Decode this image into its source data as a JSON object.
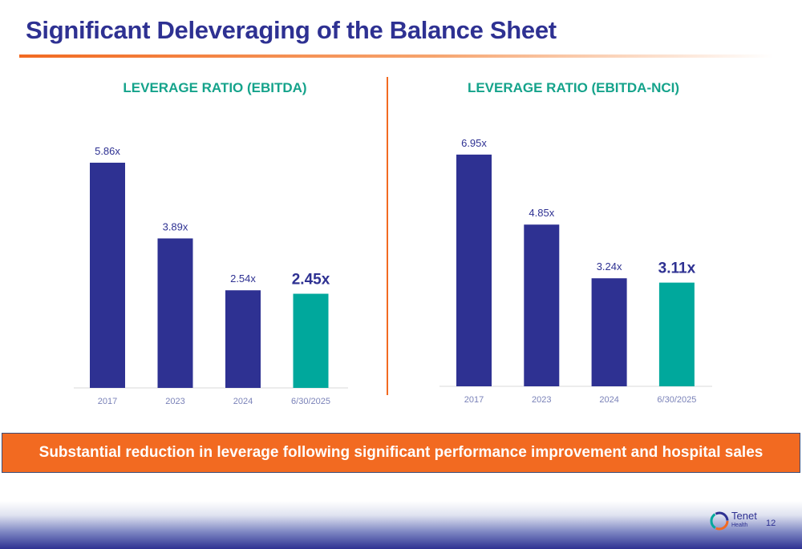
{
  "title": "Significant Deleveraging of the Balance Sheet",
  "banner": "Substantial reduction in leverage following significant performance improvement and hospital sales",
  "footer": {
    "logo_name": "Tenet",
    "logo_sub": "Health",
    "page_number": "12"
  },
  "colors": {
    "navy": "#2e3192",
    "teal": "#00a89c",
    "orange": "#f26a21",
    "title_green": "#15a38b"
  },
  "chart_data": [
    {
      "type": "bar",
      "title": "LEVERAGE RATIO (EBITDA)",
      "categories": [
        "2017",
        "2023",
        "2024",
        "6/30/2025"
      ],
      "values": [
        5.86,
        3.89,
        2.54,
        2.45
      ],
      "data_labels": [
        "5.86x",
        "3.89x",
        "2.54x",
        "2.45x"
      ],
      "highlight_index": 3,
      "xlabel": "",
      "ylabel": ""
    },
    {
      "type": "bar",
      "title": "LEVERAGE RATIO (EBITDA-NCI)",
      "categories": [
        "2017",
        "2023",
        "2024",
        "6/30/2025"
      ],
      "values": [
        6.95,
        4.85,
        3.24,
        3.11
      ],
      "data_labels": [
        "6.95x",
        "4.85x",
        "3.24x",
        "3.11x"
      ],
      "highlight_index": 3,
      "xlabel": "",
      "ylabel": ""
    }
  ]
}
